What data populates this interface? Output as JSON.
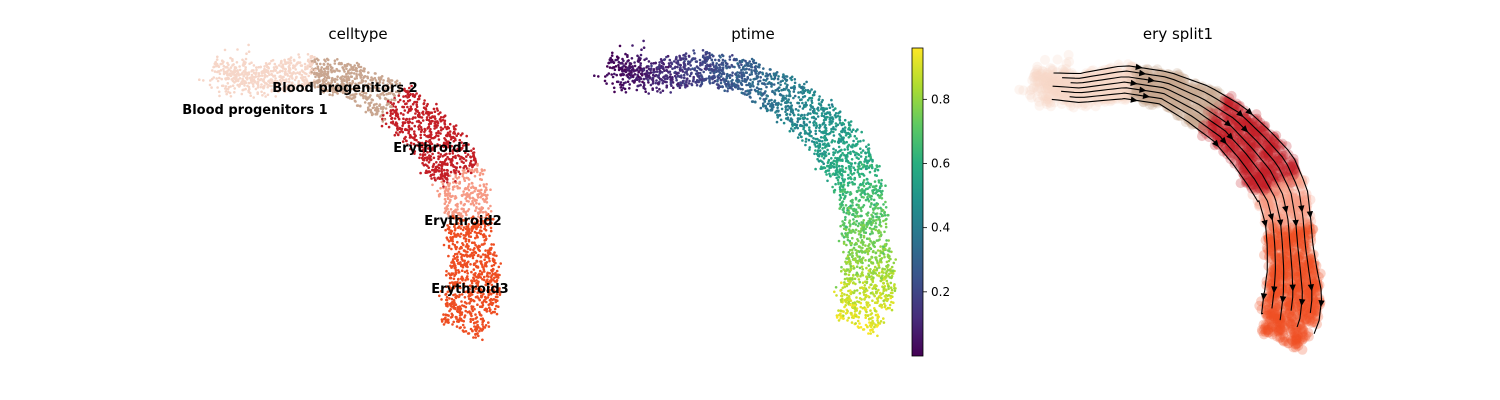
{
  "chart_data": [
    {
      "type": "scatter",
      "title": "celltype",
      "colored_by": "cluster",
      "legend": "on data",
      "clusters": [
        {
          "name": "Blood progenitors 1",
          "color": "#f6d6c8"
        },
        {
          "name": "Blood progenitors 2",
          "color": "#c9a690"
        },
        {
          "name": "Erythroid1",
          "color": "#c41f26"
        },
        {
          "name": "Erythroid2",
          "color": "#f69a85"
        },
        {
          "name": "Erythroid3",
          "color": "#ee4e22"
        }
      ]
    },
    {
      "type": "scatter",
      "title": "ptime",
      "colored_by": "continuous",
      "colormap": "viridis",
      "colorbar": {
        "ticks": [
          "0.2",
          "0.4",
          "0.6",
          "0.8"
        ],
        "tick_values": [
          0.2,
          0.4,
          0.6,
          0.8
        ],
        "range": [
          0.0,
          0.96
        ]
      }
    },
    {
      "type": "scatter",
      "title": "ery split1",
      "overlay": "velocity streamlines with arrows",
      "colored_by": "cluster"
    }
  ]
}
